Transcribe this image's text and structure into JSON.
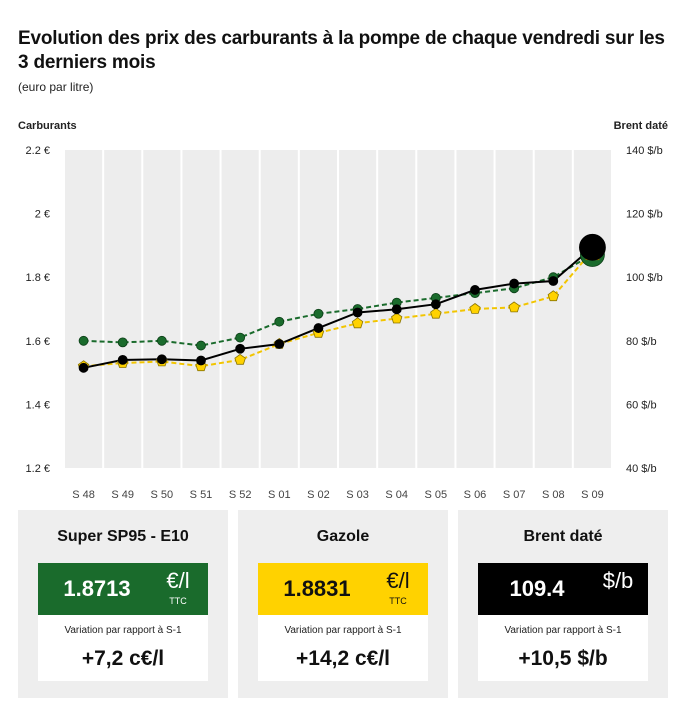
{
  "title": "Evolution des prix des carburants à la pompe de chaque vendredi sur les 3 derniers mois",
  "subtitle": "(euro par litre)",
  "chart_data": {
    "type": "line",
    "categories": [
      "S 48",
      "S 49",
      "S 50",
      "S 51",
      "S 52",
      "S 01",
      "S 02",
      "S 03",
      "S 04",
      "S 05",
      "S 06",
      "S 07",
      "S 08",
      "S 09"
    ],
    "left_axis": {
      "title": "Carburants",
      "range": [
        1.2,
        2.2
      ],
      "ticks": [
        1.2,
        1.4,
        1.6,
        1.8,
        2.0,
        2.2
      ],
      "tick_labels": [
        "1.2 €",
        "1.4 €",
        "1.6 €",
        "1.8 €",
        "2 €",
        "2.2 €"
      ]
    },
    "right_axis": {
      "title": "Brent daté",
      "range": [
        40,
        140
      ],
      "ticks": [
        40,
        60,
        80,
        100,
        120,
        140
      ],
      "tick_labels": [
        "40 $/b",
        "60 $/b",
        "80 $/b",
        "100 $/b",
        "120 $/b",
        "140 $/b"
      ]
    },
    "series": [
      {
        "key": "sp95",
        "axis": "left",
        "style": "dashed",
        "marker": "circle",
        "color": "#1a6b2c",
        "values": [
          1.6,
          1.595,
          1.6,
          1.585,
          1.61,
          1.66,
          1.685,
          1.7,
          1.72,
          1.735,
          1.75,
          1.765,
          1.8,
          1.8713
        ]
      },
      {
        "key": "gazole",
        "axis": "left",
        "style": "dashed",
        "marker": "pentagon",
        "color": "#ffd200",
        "values": [
          1.52,
          1.53,
          1.535,
          1.52,
          1.54,
          1.59,
          1.625,
          1.655,
          1.67,
          1.685,
          1.7,
          1.705,
          1.74,
          1.8831
        ]
      },
      {
        "key": "brent",
        "axis": "right",
        "style": "solid",
        "marker": "circle",
        "color": "#000000",
        "values": [
          71.5,
          74.0,
          74.2,
          73.8,
          77.5,
          79.0,
          84.0,
          88.9,
          89.9,
          91.5,
          96.0,
          98.0,
          98.8,
          109.4
        ]
      }
    ],
    "grid": "vertical-bands",
    "legend": "none"
  },
  "cards": [
    {
      "title": "Super SP95 - E10",
      "value": "1.8713",
      "unit": "€/l",
      "ttc": "TTC",
      "variation_label": "Variation par rapport à S-1",
      "variation": "+7,2 c€/l",
      "bg": "#1a6b2c",
      "fg": "#ffffff"
    },
    {
      "title": "Gazole",
      "value": "1.8831",
      "unit": "€/l",
      "ttc": "TTC",
      "variation_label": "Variation par rapport à S-1",
      "variation": "+14,2 c€/l",
      "bg": "#ffd200",
      "fg": "#111111"
    },
    {
      "title": "Brent daté",
      "value": "109.4",
      "unit": "$/b",
      "ttc": "",
      "variation_label": "Variation par rapport à S-1",
      "variation": "+10,5 $/b",
      "bg": "#000000",
      "fg": "#ffffff"
    }
  ]
}
